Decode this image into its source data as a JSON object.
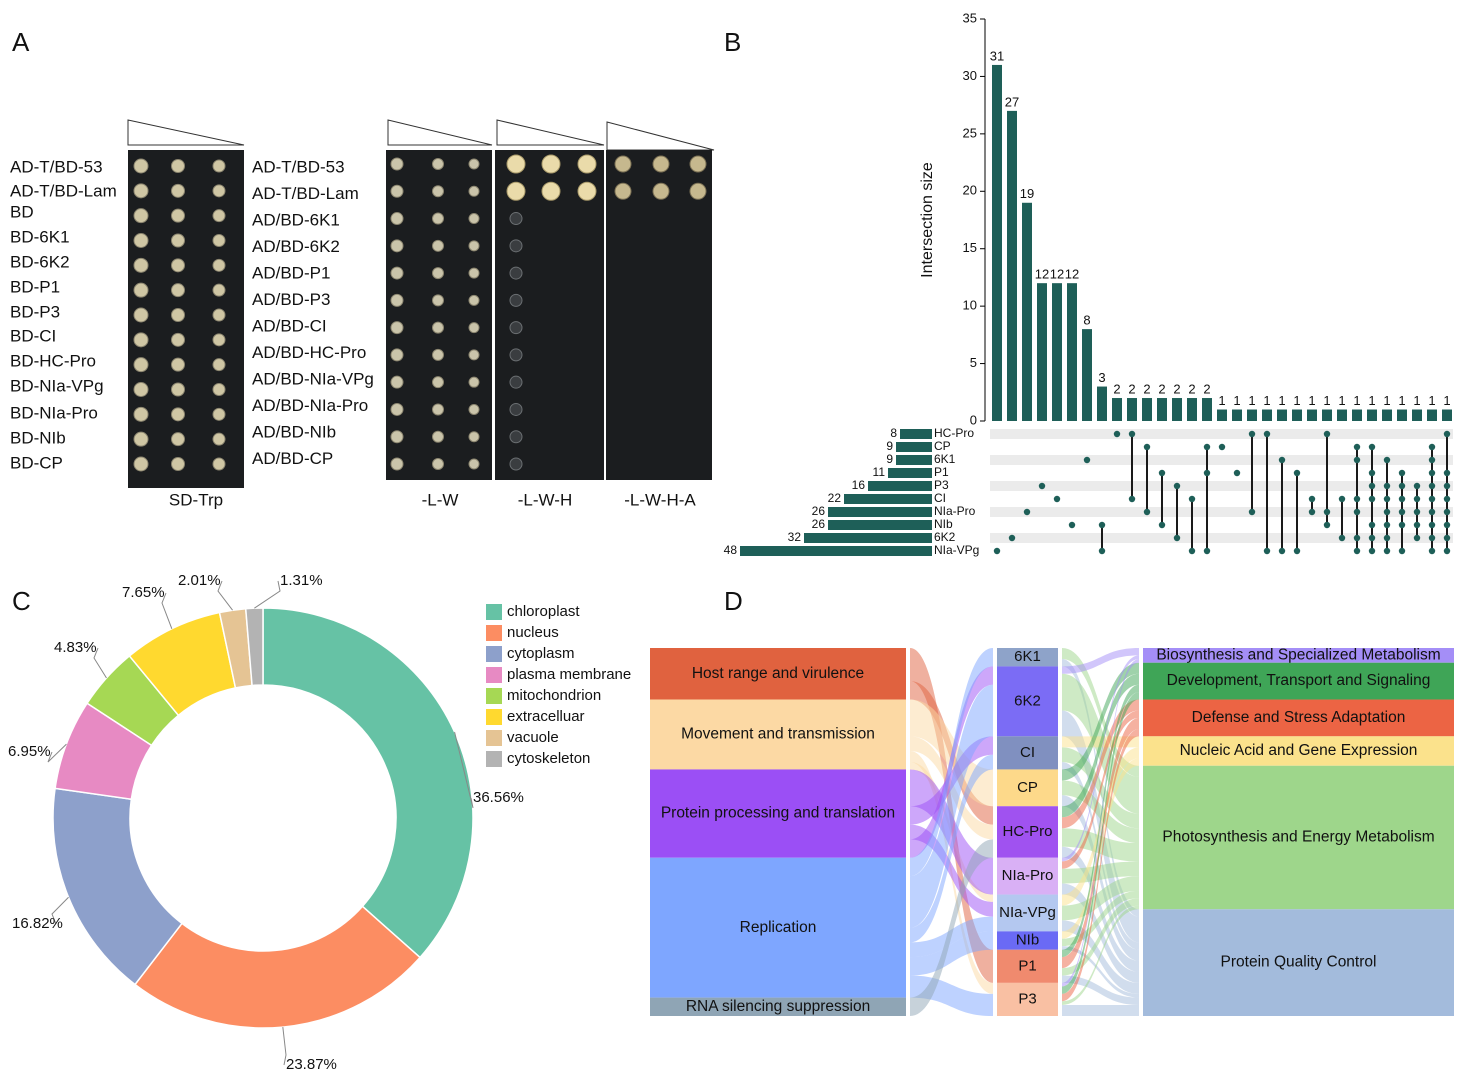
{
  "panel_labels": [
    "A",
    "B",
    "C",
    "D"
  ],
  "panel_a": {
    "left_labels": [
      "AD-T/BD-53",
      "AD-T/BD-Lam",
      "BD",
      "BD-6K1",
      "BD-6K2",
      "BD-P1",
      "BD-P3",
      "BD-CI",
      "BD-HC-Pro",
      "BD-NIa-VPg",
      "BD-NIa-Pro",
      "BD-NIb",
      "BD-CP"
    ],
    "mid_labels": [
      "AD-T/BD-53",
      "AD-T/BD-Lam",
      "AD/BD-6K1",
      "AD/BD-6K2",
      "AD/BD-P1",
      "AD/BD-P3",
      "AD/BD-CI",
      "AD/BD-HC-Pro",
      "AD/BD-NIa-VPg",
      "AD/BD-NIa-Pro",
      "AD/BD-NIb",
      "AD/BD-CP"
    ],
    "plate_labels": [
      "SD-Trp",
      "-L-W",
      "-L-W-H",
      "-L-W-H-A"
    ]
  },
  "chart_data": [
    {
      "type": "upset",
      "ylabel": "Intersection size",
      "color": "#1e5f58",
      "ylim": [
        0,
        35
      ],
      "yticks": [
        0,
        5,
        10,
        15,
        20,
        25,
        30,
        35
      ],
      "values": [
        31,
        27,
        19,
        12,
        12,
        12,
        8,
        3,
        2,
        2,
        2,
        2,
        2,
        2,
        2,
        1,
        1,
        1,
        1,
        1,
        1,
        1,
        1,
        1,
        1,
        1,
        1,
        1,
        1,
        1,
        1
      ],
      "members": [
        [
          9
        ],
        [
          8
        ],
        [
          6
        ],
        [
          4
        ],
        [
          5
        ],
        [
          7
        ],
        [
          2
        ],
        [
          7,
          9
        ],
        [
          0
        ],
        [
          0,
          5
        ],
        [
          1,
          6
        ],
        [
          3,
          7
        ],
        [
          4,
          8
        ],
        [
          5,
          9
        ],
        [
          1,
          3,
          9
        ],
        [
          1
        ],
        [
          3
        ],
        [
          0,
          6
        ],
        [
          0,
          9
        ],
        [
          2,
          9
        ],
        [
          3,
          9
        ],
        [
          5,
          6
        ],
        [
          0,
          6,
          7
        ],
        [
          5,
          8
        ],
        [
          1,
          2,
          5,
          6,
          8,
          9
        ],
        [
          1,
          3,
          4,
          5,
          7,
          8,
          9
        ],
        [
          2,
          4,
          5,
          6,
          7,
          8,
          9
        ],
        [
          3,
          4,
          5,
          6,
          7,
          9
        ],
        [
          4,
          5,
          6,
          7,
          8
        ],
        [
          1,
          2,
          3,
          4,
          5,
          6,
          7,
          8,
          9
        ],
        [
          0,
          3,
          4,
          5,
          6,
          7,
          8,
          9
        ]
      ],
      "set_names": [
        "HC-Pro",
        "CP",
        "6K1",
        "P1",
        "P3",
        "CI",
        "NIa-Pro",
        "NIb",
        "6K2",
        "NIa-VPg"
      ],
      "set_sizes": [
        8,
        9,
        9,
        11,
        16,
        22,
        26,
        26,
        32,
        48
      ]
    },
    {
      "type": "donut",
      "categories": [
        "chloroplast",
        "nucleus",
        "cytoplasm",
        "plasma membrane",
        "mitochondrion",
        "extracelluar",
        "vacuole",
        "cytoskeleton"
      ],
      "values": [
        36.56,
        23.87,
        16.82,
        6.95,
        4.83,
        7.65,
        2.01,
        1.31
      ],
      "value_labels": [
        "36.56%",
        "23.87%",
        "16.82%",
        "6.95%",
        "4.83%",
        "7.65%",
        "2.01%",
        "1.31%"
      ],
      "colors": [
        "#66c2a5",
        "#fc8d62",
        "#8da0cb",
        "#e78ac3",
        "#a6d854",
        "#ffd92f",
        "#e5c494",
        "#b3b3b3"
      ]
    },
    {
      "type": "sankey",
      "left_nodes": [
        {
          "name": "Host range and virulence",
          "color": "#e0623f"
        },
        {
          "name": "Movement and transmission",
          "color": "#fcd9a4"
        },
        {
          "name": "Protein processing and translation",
          "color": "#9b4ff5"
        },
        {
          "name": "Replication",
          "color": "#7ea6ff"
        },
        {
          "name": "RNA silencing suppression",
          "color": "#8fa5b5"
        }
      ],
      "middle_nodes": [
        {
          "name": "6K1",
          "color": "#8ea3c9"
        },
        {
          "name": "6K2",
          "color": "#7b6cf5"
        },
        {
          "name": "CI",
          "color": "#8090c0"
        },
        {
          "name": "CP",
          "color": "#fdd98a"
        },
        {
          "name": "HC-Pro",
          "color": "#a052f0"
        },
        {
          "name": "NIa-Pro",
          "color": "#d9b0f5"
        },
        {
          "name": "NIa-VPg",
          "color": "#b4c8f0"
        },
        {
          "name": "NIb",
          "color": "#6a6af5"
        },
        {
          "name": "P1",
          "color": "#f08a6e"
        },
        {
          "name": "P3",
          "color": "#f9c0a3"
        }
      ],
      "right_nodes": [
        {
          "name": "Biosynthesis and Specialized Metabolism",
          "color": "#a48ef7"
        },
        {
          "name": "Development, Transport and Signaling",
          "color": "#3fa557"
        },
        {
          "name": "Defense and Stress Adaptation",
          "color": "#ec6444"
        },
        {
          "name": "Nucleic Acid and Gene Expression",
          "color": "#fbe28c"
        },
        {
          "name": "Photosynthesis and Energy Metabolism",
          "color": "#9ed68b"
        },
        {
          "name": "Protein Quality Control",
          "color": "#a3bbdc"
        }
      ],
      "links": [
        {
          "source": "Host range and virulence",
          "target": "P1",
          "value": 9
        },
        {
          "source": "Host range and virulence",
          "target": "HC-Pro",
          "value": 5
        },
        {
          "source": "Movement and transmission",
          "target": "CP",
          "value": 10
        },
        {
          "source": "Movement and transmission",
          "target": "HC-Pro",
          "value": 4
        },
        {
          "source": "Movement and transmission",
          "target": "P3",
          "value": 3
        },
        {
          "source": "Movement and transmission",
          "target": "NIa-VPg",
          "value": 2
        },
        {
          "source": "Protein processing and translation",
          "target": "NIa-Pro",
          "value": 10
        },
        {
          "source": "Protein processing and translation",
          "target": "CI",
          "value": 5
        },
        {
          "source": "Protein processing and translation",
          "target": "NIa-VPg",
          "value": 4
        },
        {
          "source": "Protein processing and translation",
          "target": "6K2",
          "value": 5
        },
        {
          "source": "Replication",
          "target": "6K1",
          "value": 5
        },
        {
          "source": "Replication",
          "target": "6K2",
          "value": 14
        },
        {
          "source": "Replication",
          "target": "CI",
          "value": 4
        },
        {
          "source": "Replication",
          "target": "NIa-VPg",
          "value": 4
        },
        {
          "source": "Replication",
          "target": "NIb",
          "value": 5
        },
        {
          "source": "Replication",
          "target": "P3",
          "value": 6
        },
        {
          "source": "RNA silencing suppression",
          "target": "HC-Pro",
          "value": 5
        },
        {
          "source": "6K1",
          "target": "Photosynthesis and Energy Metabolism",
          "value": 3
        },
        {
          "source": "6K1",
          "target": "Protein Quality Control",
          "value": 2
        },
        {
          "source": "6K2",
          "target": "Biosynthesis and Specialized Metabolism",
          "value": 2
        },
        {
          "source": "6K2",
          "target": "Photosynthesis and Energy Metabolism",
          "value": 10
        },
        {
          "source": "6K2",
          "target": "Protein Quality Control",
          "value": 7
        },
        {
          "source": "CI",
          "target": "Nucleic Acid and Gene Expression",
          "value": 3
        },
        {
          "source": "CI",
          "target": "Photosynthesis and Energy Metabolism",
          "value": 4
        },
        {
          "source": "CI",
          "target": "Protein Quality Control",
          "value": 2
        },
        {
          "source": "CP",
          "target": "Development, Transport and Signaling",
          "value": 3
        },
        {
          "source": "CP",
          "target": "Photosynthesis and Energy Metabolism",
          "value": 4
        },
        {
          "source": "CP",
          "target": "Protein Quality Control",
          "value": 3
        },
        {
          "source": "HC-Pro",
          "target": "Development, Transport and Signaling",
          "value": 3
        },
        {
          "source": "HC-Pro",
          "target": "Defense and Stress Adaptation",
          "value": 3
        },
        {
          "source": "HC-Pro",
          "target": "Photosynthesis and Energy Metabolism",
          "value": 5
        },
        {
          "source": "HC-Pro",
          "target": "Protein Quality Control",
          "value": 3
        },
        {
          "source": "NIa-Pro",
          "target": "Biosynthesis and Specialized Metabolism",
          "value": 1
        },
        {
          "source": "NIa-Pro",
          "target": "Defense and Stress Adaptation",
          "value": 2
        },
        {
          "source": "NIa-Pro",
          "target": "Photosynthesis and Energy Metabolism",
          "value": 4
        },
        {
          "source": "NIa-Pro",
          "target": "Protein Quality Control",
          "value": 3
        },
        {
          "source": "NIa-VPg",
          "target": "Nucleic Acid and Gene Expression",
          "value": 3
        },
        {
          "source": "NIa-VPg",
          "target": "Photosynthesis and Energy Metabolism",
          "value": 4
        },
        {
          "source": "NIa-VPg",
          "target": "Protein Quality Control",
          "value": 3
        },
        {
          "source": "NIb",
          "target": "Nucleic Acid and Gene Expression",
          "value": 2
        },
        {
          "source": "NIb",
          "target": "Photosynthesis and Energy Metabolism",
          "value": 2
        },
        {
          "source": "NIb",
          "target": "Protein Quality Control",
          "value": 1
        },
        {
          "source": "P1",
          "target": "Development, Transport and Signaling",
          "value": 2
        },
        {
          "source": "P1",
          "target": "Defense and Stress Adaptation",
          "value": 3
        },
        {
          "source": "P1",
          "target": "Photosynthesis and Energy Metabolism",
          "value": 2
        },
        {
          "source": "P1",
          "target": "Protein Quality Control",
          "value": 2
        },
        {
          "source": "P3",
          "target": "Biosynthesis and Specialized Metabolism",
          "value": 1
        },
        {
          "source": "P3",
          "target": "Development, Transport and Signaling",
          "value": 2
        },
        {
          "source": "P3",
          "target": "Defense and Stress Adaptation",
          "value": 2
        },
        {
          "source": "P3",
          "target": "Photosynthesis and Energy Metabolism",
          "value": 1
        },
        {
          "source": "P3",
          "target": "Protein Quality Control",
          "value": 3
        }
      ]
    }
  ]
}
